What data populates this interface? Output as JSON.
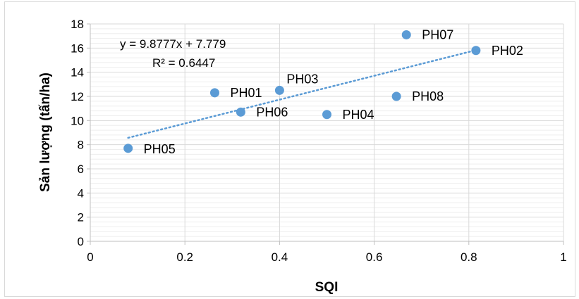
{
  "chart_data": {
    "type": "scatter",
    "title": "",
    "xlabel": "SQI",
    "ylabel": "Sản lượng (tấn/ha)",
    "xlim": [
      0,
      1
    ],
    "ylim": [
      0,
      18
    ],
    "xticks": [
      "0",
      "0.2",
      "0.4",
      "0.6",
      "0.8",
      "1"
    ],
    "yticks": [
      "0",
      "2",
      "4",
      "6",
      "8",
      "10",
      "12",
      "14",
      "16",
      "18"
    ],
    "grid": true,
    "marker_color": "#5b9bd5",
    "trendline": {
      "slope": 9.8777,
      "intercept": 7.779,
      "x_range": [
        0.08,
        0.815
      ],
      "equation": "y = 9.8777x + 7.779",
      "r2": "R² = 0.6447"
    },
    "points": [
      {
        "label": "PH01",
        "x": 0.263,
        "y": 12.3
      },
      {
        "label": "PH02",
        "x": 0.815,
        "y": 15.8
      },
      {
        "label": "PH03",
        "x": 0.4,
        "y": 12.5
      },
      {
        "label": "PH04",
        "x": 0.5,
        "y": 10.5
      },
      {
        "label": "PH05",
        "x": 0.08,
        "y": 7.7
      },
      {
        "label": "PH06",
        "x": 0.318,
        "y": 10.7
      },
      {
        "label": "PH07",
        "x": 0.668,
        "y": 17.1
      },
      {
        "label": "PH08",
        "x": 0.647,
        "y": 12.0
      }
    ]
  }
}
